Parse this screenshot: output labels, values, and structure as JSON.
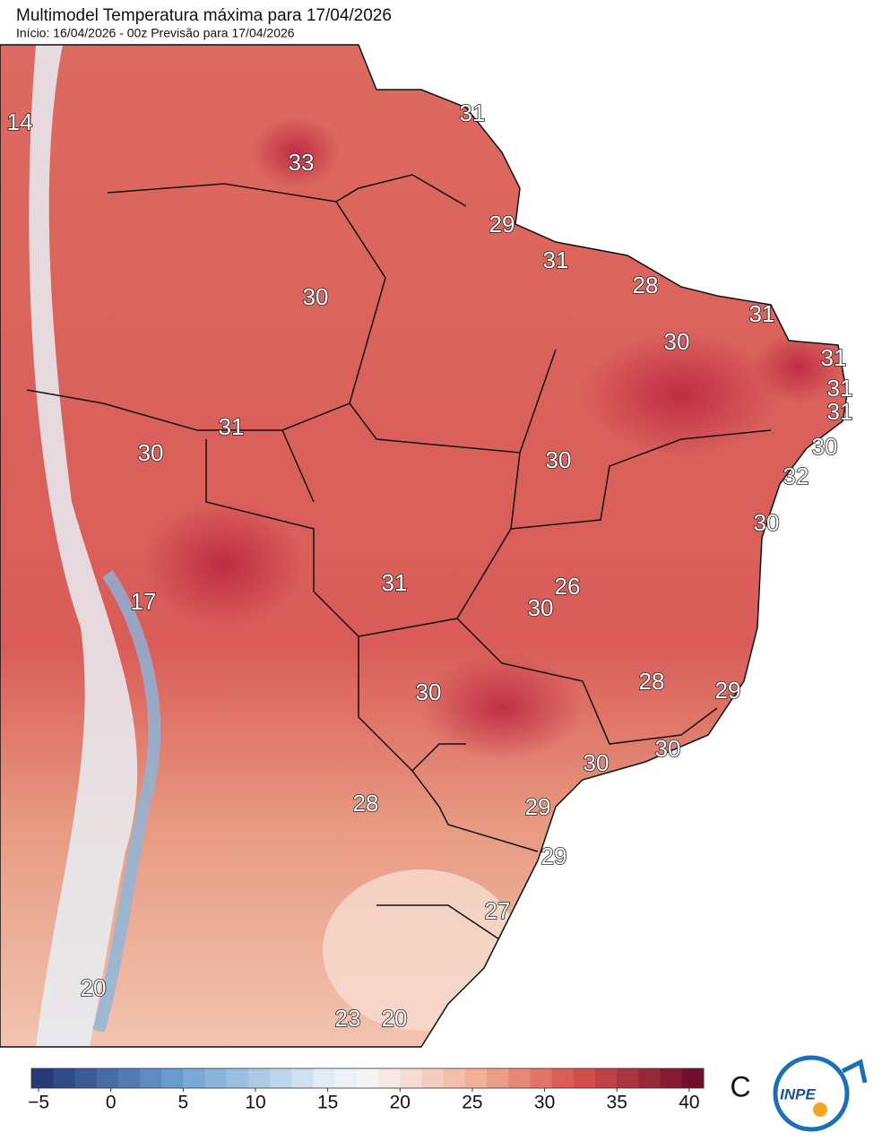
{
  "header": {
    "title": "Multimodel Temperatura máxima para 17/04/2026",
    "subtitle": "Início: 16/04/2026 - 00z  Previsão para 17/04/2026"
  },
  "map": {
    "labels": [
      14,
      33,
      31,
      29,
      31,
      30,
      28,
      31,
      30,
      31,
      31,
      31,
      31,
      30,
      30,
      30,
      32,
      30,
      31,
      26,
      30,
      17,
      30,
      28,
      29,
      30,
      30,
      28,
      29,
      29,
      27,
      20,
      23,
      20
    ]
  },
  "colorbar": {
    "lim": [
      -5.5,
      41
    ],
    "ticks": [
      {
        "value": -5,
        "label": "−5"
      },
      0,
      5,
      10,
      15,
      20,
      25,
      30,
      35,
      40
    ],
    "unit": "C",
    "colors": [
      [
        -5.5,
        "#1e3370"
      ],
      [
        5,
        "#6fa3d4"
      ],
      [
        15,
        "#e3eef7"
      ],
      [
        18,
        "#f8f4f2"
      ],
      [
        25,
        "#f2b49c"
      ],
      [
        32,
        "#d9544f"
      ],
      [
        41,
        "#6a0628"
      ]
    ]
  },
  "logo": {
    "text": "INPE"
  }
}
